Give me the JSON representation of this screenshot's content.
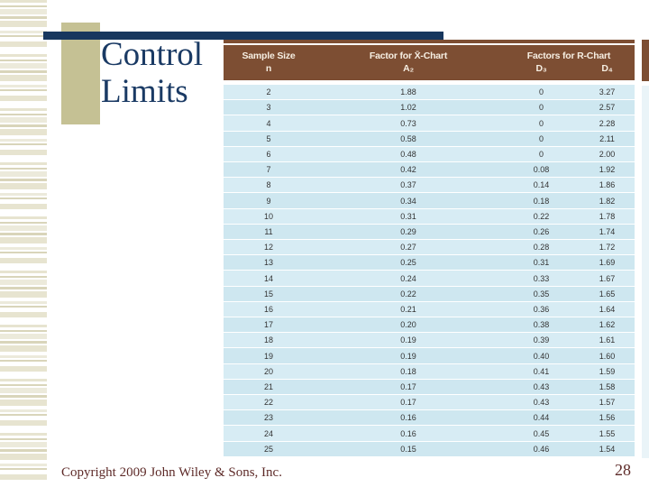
{
  "slide": {
    "title": "Control Limits",
    "footer": {
      "copyright": "Copyright 2009 John Wiley & Sons, Inc.",
      "page_number": "28"
    }
  },
  "table": {
    "header": {
      "sample_size_line1": "Sample Size",
      "sample_size_line2": "n",
      "xchart_line1": "Factor for X̄-Chart",
      "xchart_line2": "A₂",
      "rchart_line1": "Factors for R-Chart",
      "rchart_d3": "D₃",
      "rchart_d4": "D₄"
    },
    "rows": [
      [
        "2",
        "1.88",
        "0",
        "3.27"
      ],
      [
        "3",
        "1.02",
        "0",
        "2.57"
      ],
      [
        "4",
        "0.73",
        "0",
        "2.28"
      ],
      [
        "5",
        "0.58",
        "0",
        "2.11"
      ],
      [
        "6",
        "0.48",
        "0",
        "2.00"
      ],
      [
        "7",
        "0.42",
        "0.08",
        "1.92"
      ],
      [
        "8",
        "0.37",
        "0.14",
        "1.86"
      ],
      [
        "9",
        "0.34",
        "0.18",
        "1.82"
      ],
      [
        "10",
        "0.31",
        "0.22",
        "1.78"
      ],
      [
        "11",
        "0.29",
        "0.26",
        "1.74"
      ],
      [
        "12",
        "0.27",
        "0.28",
        "1.72"
      ],
      [
        "13",
        "0.25",
        "0.31",
        "1.69"
      ],
      [
        "14",
        "0.24",
        "0.33",
        "1.67"
      ],
      [
        "15",
        "0.22",
        "0.35",
        "1.65"
      ],
      [
        "16",
        "0.21",
        "0.36",
        "1.64"
      ],
      [
        "17",
        "0.20",
        "0.38",
        "1.62"
      ],
      [
        "18",
        "0.19",
        "0.39",
        "1.61"
      ],
      [
        "19",
        "0.19",
        "0.40",
        "1.60"
      ],
      [
        "20",
        "0.18",
        "0.41",
        "1.59"
      ],
      [
        "21",
        "0.17",
        "0.43",
        "1.58"
      ],
      [
        "22",
        "0.17",
        "0.43",
        "1.57"
      ],
      [
        "23",
        "0.16",
        "0.44",
        "1.56"
      ],
      [
        "24",
        "0.16",
        "0.45",
        "1.55"
      ],
      [
        "25",
        "0.15",
        "0.46",
        "1.54"
      ]
    ]
  },
  "colors": {
    "accent_navy": "#17375e",
    "title_navy": "#1a3a64",
    "header_brown": "#7d4e33",
    "header_text": "#f6eee2",
    "row_blue": "#cee7f0",
    "row_blue_alt": "#d7ecf4",
    "olive_block": "#c5c194",
    "stripe_olive": "#d9d5ba",
    "footer_maroon": "#5e2b29"
  }
}
